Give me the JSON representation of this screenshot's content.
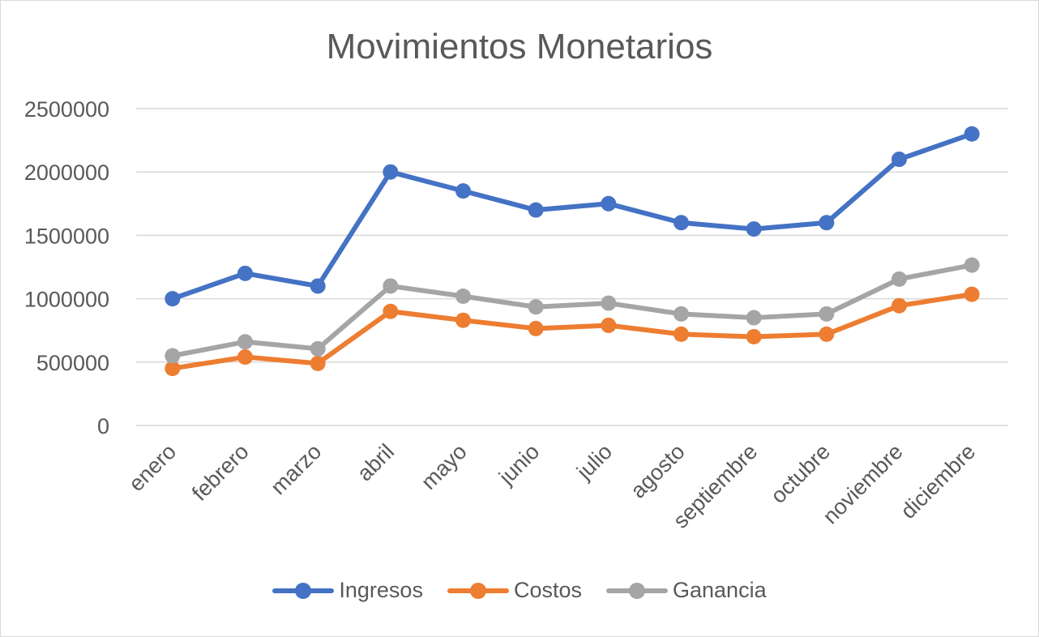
{
  "chart_data": {
    "type": "line",
    "title": "Movimientos Monetarios",
    "categories": [
      "enero",
      "febrero",
      "marzo",
      "abril",
      "mayo",
      "junio",
      "julio",
      "agosto",
      "septiembre",
      "octubre",
      "noviembre",
      "diciembre"
    ],
    "series": [
      {
        "name": "Ingresos",
        "color": "#4472C4",
        "values": [
          1000000,
          1200000,
          1100000,
          2000000,
          1850000,
          1700000,
          1750000,
          1600000,
          1550000,
          1600000,
          2100000,
          2300000
        ]
      },
      {
        "name": "Costos",
        "color": "#ED7D31",
        "values": [
          450000,
          540000,
          490000,
          900000,
          830000,
          765000,
          790000,
          720000,
          700000,
          720000,
          945000,
          1035000
        ]
      },
      {
        "name": "Ganancia",
        "color": "#A5A5A5",
        "values": [
          550000,
          660000,
          605000,
          1100000,
          1020000,
          935000,
          965000,
          880000,
          850000,
          880000,
          1155000,
          1265000
        ]
      }
    ],
    "yticks": [
      "0",
      "500000",
      "1000000",
      "1500000",
      "2000000",
      "2500000"
    ],
    "ylim": [
      0,
      2500000
    ],
    "grid": true,
    "legend": "bottom",
    "gridline_color": "#d9d9d9"
  }
}
